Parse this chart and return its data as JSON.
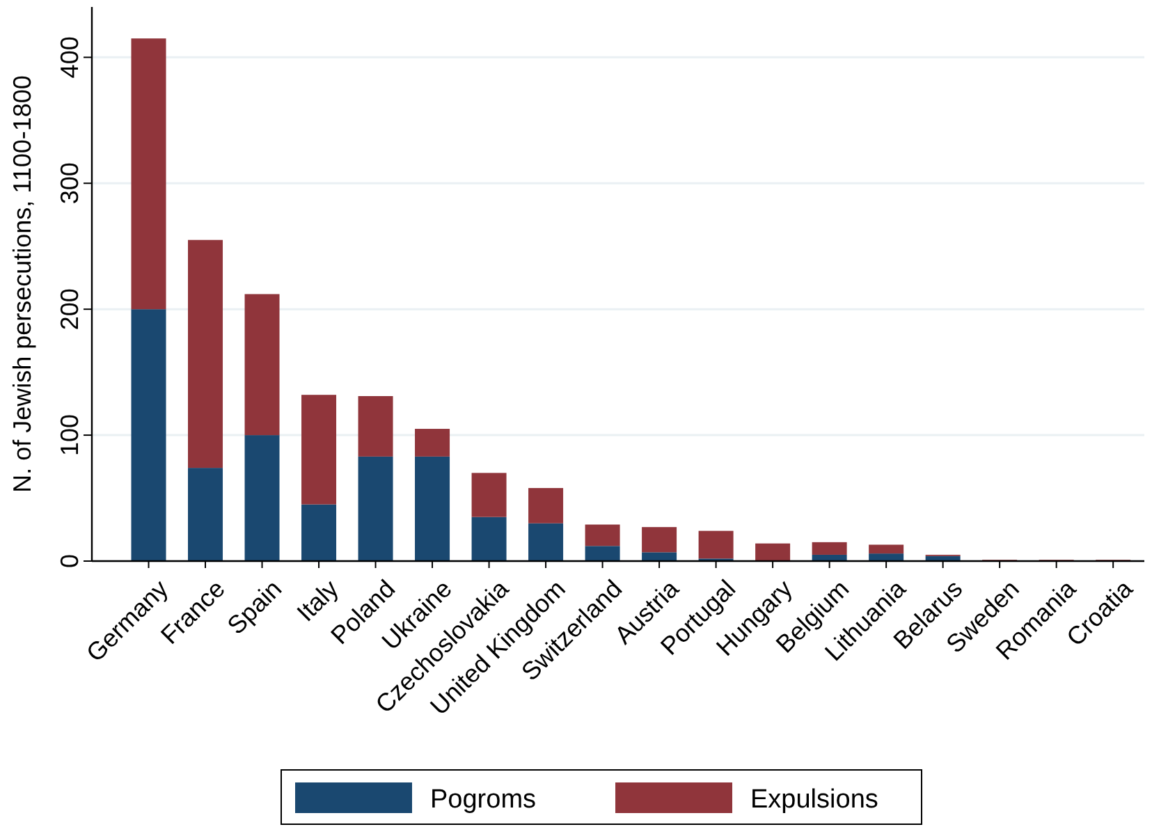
{
  "chart_data": {
    "type": "bar",
    "stacked": true,
    "ylabel": "N. of Jewish persecutions, 1100-1800",
    "categories": [
      "Germany",
      "France",
      "Spain",
      "Italy",
      "Poland",
      "Ukraine",
      "Czechoslovakia",
      "United Kingdom",
      "Switzerland",
      "Austria",
      "Portugal",
      "Hungary",
      "Belgium",
      "Lithuania",
      "Belarus",
      "Sweden",
      "Romania",
      "Croatia"
    ],
    "series": [
      {
        "name": "Pogroms",
        "color": "#1a4870",
        "values": [
          200,
          74,
          100,
          45,
          83,
          83,
          35,
          30,
          12,
          7,
          2,
          0,
          5,
          6,
          4,
          0,
          0,
          0
        ]
      },
      {
        "name": "Expulsions",
        "color": "#90353b",
        "values": [
          215,
          181,
          112,
          87,
          48,
          22,
          35,
          28,
          17,
          20,
          22,
          14,
          10,
          7,
          1,
          1,
          1,
          1
        ]
      }
    ],
    "ylim": [
      0,
      440
    ],
    "yticks": [
      0,
      100,
      200,
      300,
      400
    ],
    "grid": "y",
    "legend": "bottom"
  }
}
